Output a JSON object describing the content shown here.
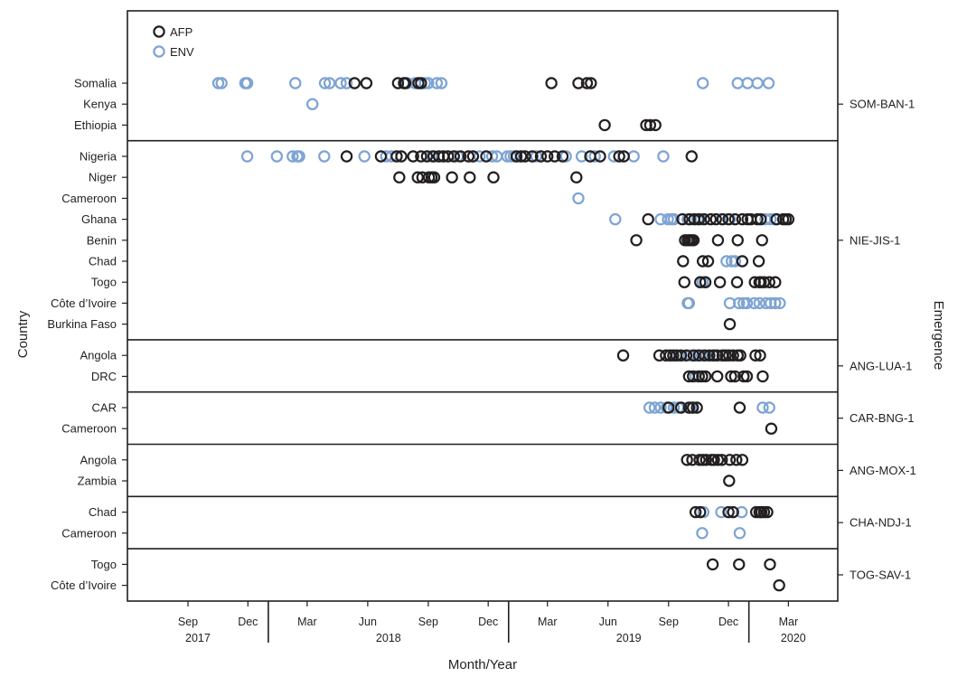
{
  "chart_data": {
    "type": "scatter",
    "xlabel": "Month/Year",
    "ylabel": "Country",
    "y2label": "Emergence",
    "x_range": [
      "2017-06-01",
      "2020-05-15"
    ],
    "legend": {
      "position": "top-left",
      "items": [
        {
          "name": "AFP",
          "color": "#231f20"
        },
        {
          "name": "ENV",
          "color": "#7ea4d3"
        }
      ]
    },
    "x_ticks": [
      {
        "date": "2017-09-01",
        "label": "Sep"
      },
      {
        "date": "2017-12-01",
        "label": "Dec"
      },
      {
        "date": "2018-03-01",
        "label": "Mar"
      },
      {
        "date": "2018-06-01",
        "label": "Jun"
      },
      {
        "date": "2018-09-01",
        "label": "Sep"
      },
      {
        "date": "2018-12-01",
        "label": "Dec"
      },
      {
        "date": "2019-03-01",
        "label": "Mar"
      },
      {
        "date": "2019-06-01",
        "label": "Jun"
      },
      {
        "date": "2019-09-01",
        "label": "Sep"
      },
      {
        "date": "2019-12-01",
        "label": "Dec"
      },
      {
        "date": "2020-03-01",
        "label": "Mar"
      }
    ],
    "years": [
      {
        "label": "2017",
        "from": "2017-06-01",
        "to": "2018-01-01"
      },
      {
        "label": "2018",
        "from": "2018-01-01",
        "to": "2019-01-01"
      },
      {
        "label": "2019",
        "from": "2019-01-01",
        "to": "2020-01-01"
      },
      {
        "label": "2020",
        "from": "2020-01-01",
        "to": "2020-05-15"
      }
    ],
    "panels": [
      {
        "emergence": "SOM-BAN-1",
        "rows": [
          {
            "country": "Somalia",
            "AFP": [
              "2018-05-12",
              "2018-05-30",
              "2018-07-17",
              "2018-07-26",
              "2018-07-28",
              "2018-08-17",
              "2018-08-21",
              "2019-03-07",
              "2019-04-17",
              "2019-04-30",
              "2019-05-06"
            ],
            "ENV": [
              "2017-10-17",
              "2017-10-22",
              "2017-11-27",
              "2017-11-30",
              "2018-02-11",
              "2018-03-28",
              "2018-04-04",
              "2018-04-21",
              "2018-04-30",
              "2018-07-31",
              "2018-08-12",
              "2018-08-27",
              "2018-09-01",
              "2018-09-14",
              "2018-09-21",
              "2019-10-23",
              "2019-12-15",
              "2019-12-30",
              "2020-01-14",
              "2020-01-31"
            ]
          },
          {
            "country": "Kenya",
            "AFP": [],
            "ENV": [
              "2018-03-09"
            ]
          },
          {
            "country": "Ethiopia",
            "AFP": [
              "2019-05-27",
              "2019-07-29",
              "2019-08-04",
              "2019-08-12"
            ],
            "ENV": []
          }
        ]
      },
      {
        "emergence": "NIE-JIS-1",
        "rows": [
          {
            "country": "Nigeria",
            "AFP": [
              "2018-04-30",
              "2018-06-21",
              "2018-07-15",
              "2018-07-22",
              "2018-08-09",
              "2018-08-21",
              "2018-08-30",
              "2018-09-09",
              "2018-09-17",
              "2018-09-24",
              "2018-10-01",
              "2018-10-10",
              "2018-10-20",
              "2018-11-01",
              "2018-11-08",
              "2018-11-28",
              "2019-01-13",
              "2019-01-20",
              "2019-01-26",
              "2019-02-06",
              "2019-02-19",
              "2019-03-01",
              "2019-03-12",
              "2019-03-24",
              "2019-05-05",
              "2019-05-20",
              "2019-06-18",
              "2019-06-25",
              "2019-10-06"
            ],
            "ENV": [
              "2017-11-30",
              "2018-01-14",
              "2018-02-07",
              "2018-02-14",
              "2018-02-17",
              "2018-03-27",
              "2018-05-27",
              "2018-06-29",
              "2018-07-07",
              "2018-09-06",
              "2018-10-16",
              "2018-11-18",
              "2018-12-07",
              "2018-12-14",
              "2018-12-30",
              "2019-01-04",
              "2019-01-09",
              "2019-02-12",
              "2019-03-29",
              "2019-04-22",
              "2019-05-12",
              "2019-06-10",
              "2019-07-10",
              "2019-08-24"
            ]
          },
          {
            "country": "Niger",
            "AFP": [
              "2018-07-19",
              "2018-08-16",
              "2018-08-23",
              "2018-09-02",
              "2018-09-06",
              "2018-09-10",
              "2018-10-07",
              "2018-11-03",
              "2018-12-09",
              "2019-04-14"
            ],
            "ENV": []
          },
          {
            "country": "Cameroon",
            "AFP": [],
            "ENV": [
              "2019-04-17"
            ]
          },
          {
            "country": "Ghana",
            "AFP": [
              "2019-08-01",
              "2019-09-22",
              "2019-10-03",
              "2019-10-10",
              "2019-10-17",
              "2019-10-25",
              "2019-11-04",
              "2019-11-12",
              "2019-11-22",
              "2019-12-01",
              "2019-12-11",
              "2019-12-22",
              "2019-12-30",
              "2020-01-04",
              "2020-01-14",
              "2020-01-19",
              "2020-02-12",
              "2020-02-22",
              "2020-02-26",
              "2020-03-01"
            ],
            "ENV": [
              "2019-06-12",
              "2019-08-20",
              "2019-08-31",
              "2019-09-05",
              "2019-09-09",
              "2019-09-30",
              "2019-10-15",
              "2019-10-20",
              "2019-11-21",
              "2019-12-03",
              "2020-01-26",
              "2020-02-03",
              "2020-02-10"
            ]
          },
          {
            "country": "Benin",
            "AFP": [
              "2019-07-14",
              "2019-09-26",
              "2019-09-30",
              "2019-10-03",
              "2019-10-06",
              "2019-10-09",
              "2019-11-15",
              "2019-12-15",
              "2020-01-21"
            ],
            "ENV": []
          },
          {
            "country": "Chad",
            "AFP": [
              "2019-09-23",
              "2019-10-23",
              "2019-10-31",
              "2019-12-22",
              "2020-01-16"
            ],
            "ENV": [
              "2019-11-28",
              "2019-12-06",
              "2019-12-11"
            ]
          },
          {
            "country": "Togo",
            "AFP": [
              "2019-09-25",
              "2019-10-19",
              "2019-10-27",
              "2019-11-18",
              "2019-12-14",
              "2020-01-10",
              "2020-01-17",
              "2020-01-19",
              "2020-01-24",
              "2020-02-01",
              "2020-02-10"
            ],
            "ENV": [
              "2019-10-23"
            ]
          },
          {
            "country": "Côte d’Ivoire",
            "AFP": [],
            "ENV": [
              "2019-09-30",
              "2019-10-02",
              "2019-12-03",
              "2019-12-17",
              "2019-12-24",
              "2019-12-29",
              "2020-01-09",
              "2020-01-17",
              "2020-01-27",
              "2020-02-03",
              "2020-02-10",
              "2020-02-17"
            ]
          },
          {
            "country": "Burkina Faso",
            "AFP": [
              "2019-12-03"
            ],
            "ENV": []
          }
        ]
      },
      {
        "emergence": "ANG-LUA-1",
        "rows": [
          {
            "country": "Angola",
            "AFP": [
              "2019-06-24",
              "2019-08-18",
              "2019-08-28",
              "2019-09-03",
              "2019-09-08",
              "2019-09-13",
              "2019-09-20",
              "2019-09-28",
              "2019-10-09",
              "2019-10-17",
              "2019-10-26",
              "2019-11-02",
              "2019-11-08",
              "2019-11-14",
              "2019-11-22",
              "2019-11-27",
              "2019-12-02",
              "2019-12-08",
              "2019-12-15",
              "2019-12-19",
              "2020-01-11",
              "2020-01-18"
            ],
            "ENV": [
              "2019-09-17",
              "2019-10-04",
              "2019-10-13",
              "2019-10-22",
              "2019-11-11",
              "2019-11-24"
            ]
          },
          {
            "country": "DRC",
            "AFP": [
              "2019-10-02",
              "2019-10-08",
              "2019-10-17",
              "2019-10-22",
              "2019-10-27",
              "2019-11-14",
              "2019-12-05",
              "2019-12-11",
              "2019-12-24",
              "2019-12-29",
              "2020-01-22"
            ],
            "ENV": [
              "2019-10-12"
            ]
          }
        ]
      },
      {
        "emergence": "CAR-BNG-1",
        "rows": [
          {
            "country": "CAR",
            "AFP": [
              "2019-09-01",
              "2019-09-20",
              "2019-10-02",
              "2019-10-08",
              "2019-10-14",
              "2019-12-18"
            ],
            "ENV": [
              "2019-08-03",
              "2019-08-11",
              "2019-08-20",
              "2019-08-29",
              "2019-09-09",
              "2019-09-16",
              "2019-10-05",
              "2020-01-22",
              "2020-02-01"
            ]
          },
          {
            "country": "Cameroon",
            "AFP": [
              "2020-02-04"
            ],
            "ENV": []
          }
        ]
      },
      {
        "emergence": "ANG-MOX-1",
        "rows": [
          {
            "country": "Angola",
            "AFP": [
              "2019-09-29",
              "2019-10-07",
              "2019-10-18",
              "2019-10-23",
              "2019-10-28",
              "2019-11-05",
              "2019-11-09",
              "2019-11-15",
              "2019-11-21",
              "2019-12-03",
              "2019-12-13",
              "2019-12-22"
            ],
            "ENV": []
          },
          {
            "country": "Zambia",
            "AFP": [
              "2019-12-02"
            ],
            "ENV": []
          }
        ]
      },
      {
        "emergence": "CHA-NDJ-1",
        "rows": [
          {
            "country": "Chad",
            "AFP": [
              "2019-10-12",
              "2019-10-19",
              "2019-12-01",
              "2019-12-08",
              "2020-01-12",
              "2020-01-17",
              "2020-01-20",
              "2020-01-24",
              "2020-01-29"
            ],
            "ENV": [
              "2019-10-24",
              "2019-11-20",
              "2019-12-21"
            ]
          },
          {
            "country": "Cameroon",
            "AFP": [],
            "ENV": [
              "2019-10-22",
              "2019-12-18"
            ]
          }
        ]
      },
      {
        "emergence": "TOG-SAV-1",
        "rows": [
          {
            "country": "Togo",
            "AFP": [
              "2019-11-07",
              "2019-12-17",
              "2020-02-02"
            ],
            "ENV": []
          },
          {
            "country": "Côte d’Ivoire",
            "AFP": [
              "2020-02-16"
            ],
            "ENV": []
          }
        ]
      }
    ]
  }
}
